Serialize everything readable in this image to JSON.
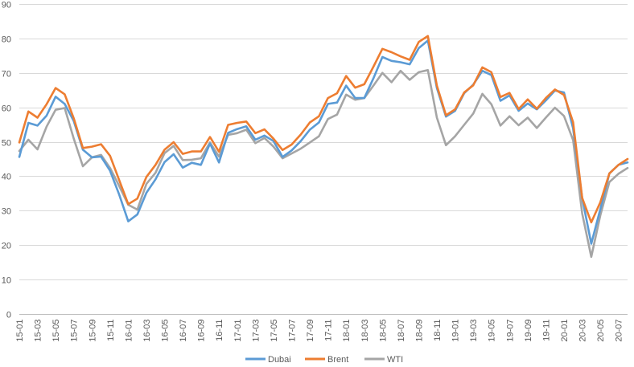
{
  "chart_data": {
    "type": "line",
    "title": "",
    "xlabel": "",
    "ylabel": "",
    "ylim": [
      0,
      90
    ],
    "yticks": [
      0,
      10,
      20,
      30,
      40,
      50,
      60,
      70,
      80,
      90
    ],
    "grid": "horizontal",
    "legend_position": "bottom",
    "x": [
      "15-01",
      "15-02",
      "15-03",
      "15-04",
      "15-05",
      "15-06",
      "15-07",
      "15-08",
      "15-09",
      "15-10",
      "15-11",
      "15-12",
      "16-01",
      "16-02",
      "16-03",
      "16-04",
      "16-05",
      "16-06",
      "16-07",
      "16-08",
      "16-09",
      "16-10",
      "16-11",
      "16-12",
      "17-01",
      "17-02",
      "17-03",
      "17-04",
      "17-05",
      "17-06",
      "17-07",
      "17-08",
      "17-09",
      "17-10",
      "17-11",
      "17-12",
      "18-01",
      "18-02",
      "18-03",
      "18-04",
      "18-05",
      "18-06",
      "18-07",
      "18-08",
      "18-09",
      "18-10",
      "18-11",
      "18-12",
      "19-01",
      "19-02",
      "19-03",
      "19-04",
      "19-05",
      "19-06",
      "19-07",
      "19-08",
      "19-09",
      "19-10",
      "19-11",
      "19-12",
      "20-01",
      "20-02",
      "20-03",
      "20-04",
      "20-05",
      "20-06",
      "20-07",
      "20-08"
    ],
    "series": [
      {
        "name": "Dubai",
        "color": "#5B9BD5",
        "values": [
          45.6,
          55.5,
          54.7,
          57.6,
          63.1,
          61.0,
          56.0,
          47.7,
          45.5,
          45.7,
          41.6,
          34.7,
          26.9,
          28.9,
          35.2,
          39.1,
          44.1,
          46.4,
          42.5,
          43.9,
          43.3,
          49.5,
          44.0,
          52.6,
          53.7,
          54.5,
          50.6,
          51.8,
          50.2,
          45.6,
          47.5,
          50.2,
          53.5,
          55.6,
          61.0,
          61.4,
          66.3,
          62.7,
          62.7,
          68.4,
          74.6,
          73.5,
          73.1,
          72.5,
          77.2,
          79.4,
          65.6,
          57.3,
          59.0,
          64.1,
          66.6,
          70.6,
          69.4,
          61.9,
          63.5,
          59.0,
          61.1,
          59.4,
          62.0,
          64.9,
          64.3,
          53.9,
          33.7,
          20.4,
          30.4,
          40.8,
          43.3,
          44.0
        ]
      },
      {
        "name": "Brent",
        "color": "#ED7D31",
        "values": [
          49.8,
          58.8,
          57.0,
          60.9,
          65.6,
          63.8,
          56.8,
          48.2,
          48.6,
          49.3,
          45.9,
          38.9,
          31.9,
          33.5,
          39.8,
          43.3,
          47.7,
          49.9,
          46.5,
          47.2,
          47.2,
          51.4,
          47.1,
          54.9,
          55.5,
          55.9,
          52.5,
          53.6,
          50.9,
          47.6,
          49.2,
          52.1,
          55.6,
          57.4,
          62.7,
          64.1,
          69.1,
          65.7,
          66.7,
          71.8,
          77.0,
          76.0,
          74.8,
          73.8,
          79.0,
          80.7,
          66.3,
          57.7,
          59.4,
          64.3,
          66.4,
          71.6,
          70.2,
          63.0,
          64.2,
          59.5,
          62.3,
          59.6,
          62.7,
          65.2,
          63.6,
          55.7,
          33.7,
          26.6,
          32.4,
          40.8,
          43.3,
          45.0
        ]
      },
      {
        "name": "WTI",
        "color": "#A5A5A5",
        "values": [
          47.3,
          50.6,
          47.8,
          54.4,
          59.3,
          59.8,
          50.9,
          42.9,
          45.5,
          46.2,
          42.4,
          37.2,
          31.7,
          30.3,
          37.8,
          41.0,
          46.7,
          48.8,
          44.7,
          44.8,
          45.2,
          49.8,
          45.7,
          52.0,
          52.5,
          53.5,
          49.6,
          51.1,
          48.6,
          45.2,
          46.6,
          48.0,
          49.8,
          51.6,
          56.6,
          57.9,
          63.7,
          62.2,
          62.7,
          66.3,
          70.0,
          67.3,
          70.6,
          68.0,
          70.2,
          70.8,
          57.0,
          49.0,
          51.6,
          54.9,
          58.2,
          63.9,
          60.9,
          54.7,
          57.4,
          54.8,
          57.0,
          54.0,
          57.0,
          59.9,
          57.5,
          50.5,
          29.2,
          16.6,
          28.6,
          38.3,
          40.7,
          42.4
        ]
      }
    ]
  }
}
